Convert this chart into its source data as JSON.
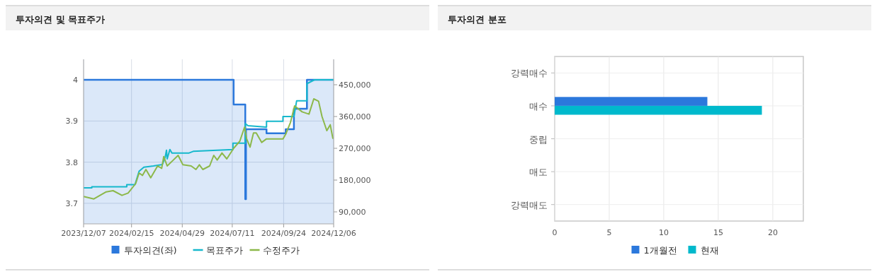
{
  "chart_data": [
    {
      "type": "line",
      "title": "투자의견 및 목표주가",
      "xlim": [
        "2023-12-07",
        "2024-12-06"
      ],
      "xticks": [
        {
          "value": "2023-12-07",
          "label": "2023/12/07"
        },
        {
          "value": "2024-02-15",
          "label": "2024/02/15"
        },
        {
          "value": "2024-04-29",
          "label": "2024/04/29"
        },
        {
          "value": "2024-07-11",
          "label": "2024/07/11"
        },
        {
          "value": "2024-09-24",
          "label": "2024/09/24"
        },
        {
          "value": "2024-12-06",
          "label": "2024/12/06"
        }
      ],
      "ylim": [
        3.65,
        4.05
      ],
      "yticks": [
        3.7,
        3.8,
        3.9,
        4
      ],
      "y2lim": [
        56000,
        522000
      ],
      "y2ticks": [
        {
          "value": 90000,
          "label": "90,000"
        },
        {
          "value": 180000,
          "label": "180,000"
        },
        {
          "value": 270000,
          "label": "270,000"
        },
        {
          "value": 360000,
          "label": "360,000"
        },
        {
          "value": 450000,
          "label": "450,000"
        }
      ],
      "grid": true,
      "legend": "bottom",
      "series": [
        {
          "name": "투자의견(좌)",
          "type": "area",
          "color": "#2b78dc",
          "x": [
            "2023-12-07",
            "2024-07-13",
            "2024-07-13",
            "2024-07-30",
            "2024-07-30",
            "2024-07-31",
            "2024-07-31",
            "2024-08-30",
            "2024-08-30",
            "2024-09-27",
            "2024-09-27",
            "2024-10-09",
            "2024-10-09",
            "2024-10-28",
            "2024-10-28",
            "2024-12-06"
          ],
          "values": [
            4,
            4,
            3.94,
            3.94,
            3.71,
            3.71,
            3.88,
            3.88,
            3.87,
            3.87,
            3.88,
            3.88,
            3.93,
            3.93,
            4,
            4
          ]
        },
        {
          "name": "목표주가",
          "type": "line",
          "axis": "y2",
          "color": "#16b8cc",
          "x": [
            "2023-12-07",
            "2023-12-19",
            "2023-12-19",
            "2024-02-08",
            "2024-02-08",
            "2024-02-20",
            "2024-02-26",
            "2024-03-04",
            "2024-03-18",
            "2024-03-31",
            "2024-04-04",
            "2024-04-06",
            "2024-04-07",
            "2024-04-11",
            "2024-04-14",
            "2024-05-09",
            "2024-05-15",
            "2024-07-12",
            "2024-07-12",
            "2024-07-30",
            "2024-07-30",
            "2024-08-03",
            "2024-08-30",
            "2024-08-30",
            "2024-09-23",
            "2024-09-23",
            "2024-10-09",
            "2024-10-13",
            "2024-10-28",
            "2024-10-28",
            "2024-11-08",
            "2024-12-06"
          ],
          "values": [
            158000,
            158000,
            161000,
            161000,
            167000,
            167000,
            205000,
            216700,
            220000,
            224000,
            244000,
            264700,
            240000,
            266700,
            256700,
            256700,
            261300,
            266700,
            284700,
            284700,
            340000,
            334000,
            330000,
            346700,
            346700,
            360000,
            360000,
            404700,
            404700,
            453000,
            464000,
            464000
          ]
        },
        {
          "name": "수정주가",
          "type": "line",
          "axis": "y2",
          "color": "#8cb84a",
          "x": [
            "2023-12-07",
            "2023-12-22",
            "2024-01-09",
            "2024-01-19",
            "2024-02-01",
            "2024-02-10",
            "2024-02-21",
            "2024-02-26",
            "2024-03-02",
            "2024-03-07",
            "2024-03-14",
            "2024-03-24",
            "2024-03-30",
            "2024-04-02",
            "2024-04-07",
            "2024-04-16",
            "2024-04-23",
            "2024-04-30",
            "2024-05-12",
            "2024-05-19",
            "2024-05-24",
            "2024-05-29",
            "2024-06-08",
            "2024-06-14",
            "2024-06-19",
            "2024-06-26",
            "2024-07-03",
            "2024-07-13",
            "2024-07-22",
            "2024-07-29",
            "2024-08-01",
            "2024-08-06",
            "2024-08-11",
            "2024-08-15",
            "2024-08-23",
            "2024-08-30",
            "2024-09-23",
            "2024-09-27",
            "2024-10-04",
            "2024-10-10",
            "2024-10-21",
            "2024-10-31",
            "2024-11-07",
            "2024-11-14",
            "2024-11-19",
            "2024-11-26",
            "2024-12-01",
            "2024-12-05"
          ],
          "values": [
            133300,
            126700,
            146700,
            150000,
            136700,
            143300,
            170000,
            200000,
            193300,
            210000,
            186700,
            220000,
            213300,
            246700,
            220000,
            236700,
            250000,
            223300,
            220000,
            210000,
            223300,
            210000,
            220000,
            250000,
            236700,
            256700,
            240000,
            270000,
            290000,
            330000,
            296700,
            273300,
            313300,
            313300,
            286700,
            296700,
            296700,
            310000,
            343300,
            390000,
            373300,
            366700,
            410000,
            403300,
            360000,
            320000,
            336700,
            296700
          ]
        }
      ]
    },
    {
      "type": "bar",
      "orientation": "horizontal",
      "title": "투자의견 분포",
      "categories": [
        "강력매수",
        "매수",
        "중립",
        "매도",
        "강력매도"
      ],
      "xlim": [
        0,
        22.8
      ],
      "xticks": [
        0,
        5,
        10,
        15,
        20
      ],
      "grid": true,
      "legend": "bottom",
      "series": [
        {
          "name": "1개월전",
          "color": "#2b78dc",
          "values": [
            0,
            14,
            0,
            0,
            0
          ]
        },
        {
          "name": "현재",
          "color": "#00b9cc",
          "values": [
            0,
            19,
            0,
            0,
            0
          ]
        }
      ]
    }
  ]
}
